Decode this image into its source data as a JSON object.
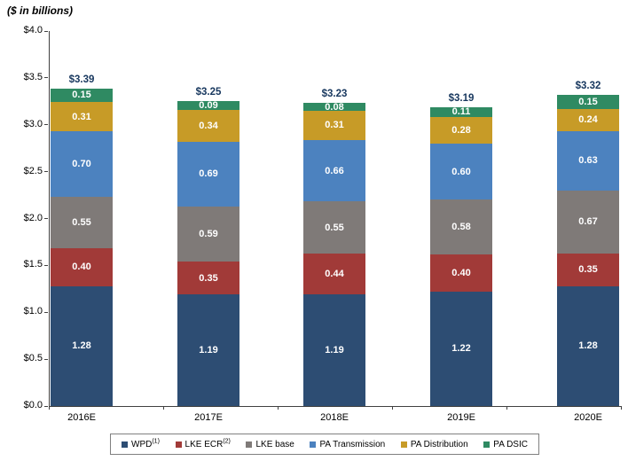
{
  "title": "($ in billions)",
  "accent_colors": {
    "total_label": "#17375E",
    "axis": "#404040",
    "legend_border": "#808080"
  },
  "chart_data": {
    "type": "bar",
    "subtype": "stacked-vertical",
    "title": "($ in billions)",
    "categories": [
      "2016E",
      "2017E",
      "2018E",
      "2019E",
      "2020E"
    ],
    "series": [
      {
        "name": "WPD",
        "sup": "(1)",
        "color": "#2D4D73",
        "values": [
          1.28,
          1.19,
          1.19,
          1.22,
          1.28
        ]
      },
      {
        "name": "LKE ECR",
        "sup": "(2)",
        "color": "#A13A38",
        "values": [
          0.4,
          0.35,
          0.44,
          0.4,
          0.35
        ]
      },
      {
        "name": "LKE base",
        "sup": "",
        "color": "#7F7A78",
        "values": [
          0.55,
          0.59,
          0.55,
          0.58,
          0.67
        ]
      },
      {
        "name": "PA Transmission",
        "sup": "",
        "color": "#4C82BF",
        "values": [
          0.7,
          0.69,
          0.66,
          0.6,
          0.63
        ]
      },
      {
        "name": "PA Distribution",
        "sup": "",
        "color": "#C79B27",
        "values": [
          0.31,
          0.34,
          0.31,
          0.28,
          0.24
        ]
      },
      {
        "name": "PA DSIC",
        "sup": "",
        "color": "#2F8A62",
        "values": [
          0.15,
          0.09,
          0.08,
          0.11,
          0.15
        ]
      }
    ],
    "totals": [
      "$3.39",
      "$3.25",
      "$3.23",
      "$3.19",
      "$3.32"
    ],
    "y_axis": {
      "min": 0,
      "max": 4,
      "step": 0.5,
      "tick_labels": [
        "$0.0",
        "$0.5",
        "$1.0",
        "$1.5",
        "$2.0",
        "$2.5",
        "$3.0",
        "$3.5",
        "$4.0"
      ]
    },
    "grid": false,
    "legend_position": "bottom"
  }
}
